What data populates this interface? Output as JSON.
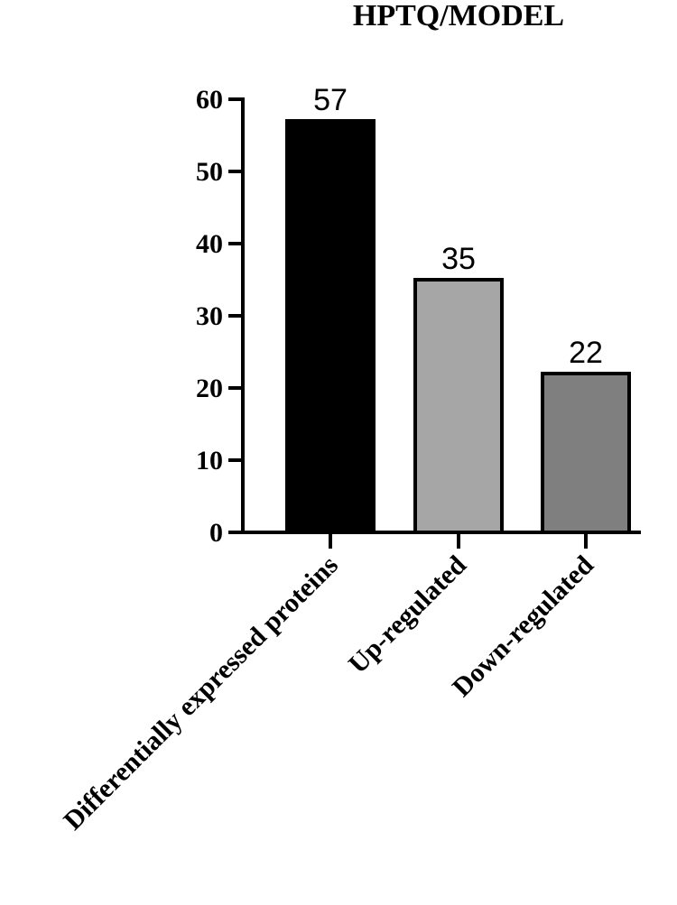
{
  "chart_data": {
    "type": "bar",
    "title": "HPTQ/MODEL",
    "categories": [
      "Differentially expressed proteins",
      "Up-regulated",
      "Down-regulated"
    ],
    "values": [
      57,
      35,
      22
    ],
    "data_labels": [
      "57",
      "35",
      "22"
    ],
    "colors": [
      "#000000",
      "#a6a6a6",
      "#7f7f7f"
    ],
    "xlabel": "",
    "ylabel": "",
    "ylim": [
      0,
      60
    ],
    "yticks": [
      0,
      10,
      20,
      30,
      40,
      50,
      60
    ],
    "grid": false,
    "legend": "none"
  }
}
